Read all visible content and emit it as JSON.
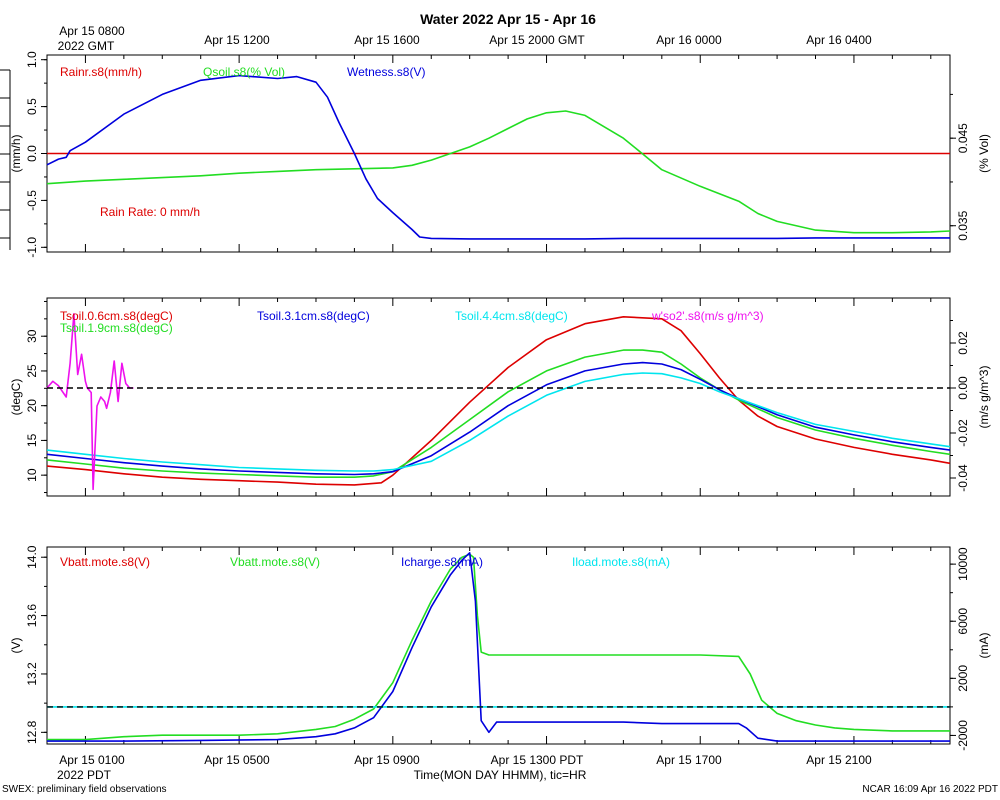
{
  "page": {
    "title": "Water 2022 Apr 15 - Apr 16",
    "top_time_labels": [
      "Apr 15 0800",
      "Apr 15 1200",
      "Apr 15 1600",
      "Apr 15 2000 GMT",
      "Apr 16 0000",
      "Apr 16 0400"
    ],
    "top_time_sub": "2022 GMT",
    "bottom_time_labels": [
      "Apr 15 0100",
      "Apr 15 0500",
      "Apr 15 0900",
      "Apr 15 1300 PDT",
      "Apr 15 1700",
      "Apr 15 2100"
    ],
    "bottom_time_sub": "2022 PDT",
    "xlabel": "Time(MON DAY HHMM), tic=HR",
    "footer_left": "SWEX: preliminary field observations",
    "footer_right": "NCAR 16:09 Apr 16 2022 PDT"
  },
  "chart_data": [
    {
      "type": "line",
      "x_unit": "hours since Apr 15 0000 PDT",
      "x_range": [
        0.0,
        23.5
      ],
      "left_axis": {
        "label": "(mm/h)",
        "range": [
          -1.05,
          1.05
        ],
        "ticks": [
          "-1.0",
          "-0.5",
          "0.0",
          "0.5",
          "1.0"
        ]
      },
      "right_axis": {
        "label": "(% Vol)",
        "range": [
          0.032,
          0.0545
        ],
        "ticks": [
          "0.035",
          "0.045"
        ]
      },
      "annotation": {
        "text": "Rain Rate: 0 mm/h",
        "color": "#dd0000"
      },
      "series": [
        {
          "name": "Rainr.s8(mm/h)",
          "axis": "left",
          "color": "#dd0000",
          "x": [
            0.0,
            23.5
          ],
          "y": [
            0.0,
            0.0
          ]
        },
        {
          "name": "Qsoil.s8(% Vol)",
          "axis": "right",
          "color": "#22dd22",
          "x": [
            0.0,
            1,
            2,
            3,
            4,
            5,
            6,
            7,
            8,
            9.0,
            9.5,
            10.0,
            11,
            11.5,
            12,
            12.5,
            13,
            13.5,
            14,
            15,
            15.5,
            16,
            17,
            18,
            18.5,
            19,
            20,
            21,
            22,
            23,
            23.5
          ],
          "y": [
            0.0398,
            0.0401,
            0.0403,
            0.0405,
            0.0407,
            0.041,
            0.0412,
            0.0414,
            0.0415,
            0.0416,
            0.0419,
            0.0425,
            0.044,
            0.045,
            0.0461,
            0.0472,
            0.0479,
            0.0481,
            0.0476,
            0.045,
            0.0432,
            0.0414,
            0.0395,
            0.0378,
            0.0364,
            0.0355,
            0.0345,
            0.0342,
            0.0342,
            0.0343,
            0.0344
          ]
        },
        {
          "name": "Wetness.s8(V)",
          "axis": "left",
          "color": "#0000dd",
          "x": [
            0.0,
            0.3,
            0.5,
            0.6,
            1.0,
            2.0,
            3.0,
            4.0,
            5.0,
            6.0,
            6.5,
            7.0,
            7.3,
            7.6,
            8.0,
            8.3,
            8.6,
            9.0,
            9.5,
            9.7,
            10.0,
            11,
            12,
            13,
            14,
            15,
            16,
            17,
            18,
            19,
            20,
            21,
            22,
            23,
            23.5
          ],
          "y": [
            -0.12,
            -0.06,
            -0.04,
            0.03,
            0.12,
            0.42,
            0.63,
            0.78,
            0.83,
            0.8,
            0.82,
            0.76,
            0.6,
            0.33,
            0.0,
            -0.27,
            -0.48,
            -0.63,
            -0.81,
            -0.89,
            -0.905,
            -0.91,
            -0.91,
            -0.91,
            -0.91,
            -0.905,
            -0.905,
            -0.905,
            -0.905,
            -0.905,
            -0.9,
            -0.9,
            -0.9,
            -0.9,
            -0.9
          ]
        }
      ]
    },
    {
      "type": "line",
      "x_unit": "hours since Apr 15 0000 PDT",
      "x_range": [
        0.0,
        23.5
      ],
      "left_axis": {
        "label": "(degC)",
        "range": [
          7.0,
          35.5
        ],
        "ticks": [
          "10",
          "15",
          "20",
          "25",
          "30"
        ]
      },
      "right_axis": {
        "label": "(m/s g/m^3)",
        "range": [
          -0.048,
          0.04
        ],
        "ticks": [
          "-0.04",
          "-0.02",
          "0.00",
          "0.02"
        ]
      },
      "series": [
        {
          "name": "Tsoil.0.6cm.s8(degC)",
          "axis": "left",
          "color": "#dd0000",
          "x": [
            0,
            1,
            2,
            3,
            4,
            5,
            6,
            7,
            8,
            8.7,
            9,
            10,
            11,
            12,
            13,
            14,
            15,
            16,
            16.5,
            17,
            17.5,
            18,
            18.5,
            19,
            20,
            21,
            22,
            23,
            23.5
          ],
          "y": [
            11.3,
            10.8,
            10.2,
            9.7,
            9.4,
            9.2,
            9.0,
            8.7,
            8.6,
            8.9,
            10.0,
            15.0,
            20.5,
            25.5,
            29.5,
            31.8,
            32.8,
            32.5,
            30.8,
            27.5,
            24.0,
            20.8,
            18.5,
            17.0,
            15.2,
            14.0,
            13.0,
            12.2,
            11.7
          ]
        },
        {
          "name": "Tsoil.1.9cm.s8(degC)",
          "axis": "left",
          "color": "#22dd22",
          "x": [
            0,
            1,
            2,
            3,
            4,
            5,
            6,
            7,
            8,
            8.5,
            9,
            10,
            11,
            12,
            13,
            14,
            15,
            15.5,
            16,
            16.5,
            17,
            17.5,
            18,
            19,
            20,
            21,
            22,
            23,
            23.5
          ],
          "y": [
            12.2,
            11.6,
            11.0,
            10.6,
            10.3,
            10.1,
            9.9,
            9.7,
            9.7,
            9.9,
            10.5,
            14.0,
            18.0,
            22.0,
            25.0,
            27.0,
            28.0,
            28.0,
            27.7,
            26.0,
            24.0,
            22.3,
            20.8,
            18.3,
            16.5,
            15.3,
            14.3,
            13.4,
            13.0
          ]
        },
        {
          "name": "Tsoil.3.1cm.s8(degC)",
          "axis": "left",
          "color": "#0000dd",
          "x": [
            0,
            1,
            2,
            3,
            4,
            5,
            6,
            7,
            8,
            8.5,
            9,
            10,
            11,
            12,
            13,
            14,
            15,
            15.5,
            16,
            16.5,
            17,
            17.5,
            18,
            19,
            20,
            21,
            22,
            23,
            23.5
          ],
          "y": [
            13.0,
            12.4,
            11.8,
            11.3,
            10.9,
            10.6,
            10.4,
            10.2,
            10.1,
            10.2,
            10.5,
            12.8,
            16.2,
            20.0,
            23.0,
            25.0,
            26.0,
            26.2,
            26.0,
            25.2,
            23.8,
            22.3,
            21.0,
            18.7,
            16.9,
            15.8,
            14.8,
            14.0,
            13.6
          ]
        },
        {
          "name": "Tsoil.4.4cm.s8(degC)",
          "axis": "left",
          "color": "#00e5ee",
          "x": [
            0,
            1,
            2,
            3,
            4,
            5,
            6,
            7,
            8,
            8.5,
            9,
            10,
            11,
            12,
            13,
            14,
            15,
            15.5,
            16,
            16.5,
            17,
            17.5,
            18,
            19,
            20,
            21,
            22,
            23,
            23.5
          ],
          "y": [
            13.6,
            13.0,
            12.4,
            11.9,
            11.5,
            11.1,
            10.9,
            10.7,
            10.6,
            10.6,
            10.8,
            12.0,
            15.0,
            18.5,
            21.5,
            23.5,
            24.5,
            24.7,
            24.6,
            24.0,
            23.2,
            22.0,
            21.0,
            19.0,
            17.3,
            16.3,
            15.3,
            14.5,
            14.1
          ]
        },
        {
          "name": "w'so2'.s8(m/s g/m^3)",
          "axis": "right",
          "color": "#ee11ee",
          "x": [
            0.0,
            0.15,
            0.3,
            0.5,
            0.6,
            0.7,
            0.8,
            0.9,
            1.0,
            1.05,
            1.15,
            1.2,
            1.3,
            1.4,
            1.5,
            1.55,
            1.65,
            1.75,
            1.85,
            1.95,
            2.05,
            2.15,
            2.25
          ],
          "y": [
            0.0,
            0.003,
            0.001,
            -0.004,
            0.011,
            0.033,
            0.006,
            0.015,
            0.003,
            0.0,
            -0.002,
            -0.045,
            -0.008,
            -0.004,
            -0.006,
            -0.009,
            -0.002,
            0.012,
            -0.006,
            0.011,
            0.002,
            0.0,
            0.0
          ]
        },
        {
          "name": "",
          "axis": "right",
          "color": "#000000",
          "dashed": true,
          "x": [
            0.0,
            23.5
          ],
          "y": [
            0.0,
            0.0
          ]
        }
      ]
    },
    {
      "type": "line",
      "x_unit": "hours since Apr 15 0000 PDT",
      "x_range": [
        0.0,
        23.5
      ],
      "left_axis": {
        "label": "(V)",
        "range": [
          12.72,
          14.07
        ],
        "ticks": [
          "12.8",
          "13.2",
          "13.6",
          "14.0"
        ]
      },
      "right_axis": {
        "label": "(mA)",
        "range": [
          -2600,
          11200
        ],
        "ticks": [
          "-2000",
          "2000",
          "6000",
          "10000"
        ]
      },
      "series": [
        {
          "name": "Vbatt.mote.s8(V)",
          "axis": "left",
          "color": "#dd0000",
          "x": [],
          "y": []
        },
        {
          "name": "Vbatt.mote.s8(V)",
          "axis": "left",
          "color": "#22dd22",
          "x": [
            0,
            1,
            2,
            3,
            4,
            5,
            6,
            7,
            7.5,
            8,
            8.5,
            9.0,
            9.5,
            10.0,
            10.5,
            10.8,
            11.0,
            11.1,
            11.2,
            11.3,
            11.5,
            12,
            13,
            14,
            15,
            16,
            17,
            18.0,
            18.3,
            18.6,
            19,
            19.5,
            20,
            20.5,
            21,
            22,
            23,
            23.5
          ],
          "y": [
            12.75,
            12.75,
            12.77,
            12.78,
            12.78,
            12.78,
            12.79,
            12.82,
            12.84,
            12.89,
            12.96,
            13.14,
            13.43,
            13.7,
            13.92,
            14.0,
            14.02,
            14.0,
            13.6,
            13.35,
            13.33,
            13.33,
            13.33,
            13.33,
            13.33,
            13.33,
            13.33,
            13.32,
            13.2,
            13.02,
            12.93,
            12.88,
            12.85,
            12.83,
            12.82,
            12.81,
            12.81,
            12.81
          ]
        },
        {
          "name": "Icharge.s8(mA)",
          "axis": "left",
          "color": "#0000dd",
          "x": [
            0,
            2,
            4,
            6,
            7,
            7.5,
            8,
            8.5,
            9.0,
            9.5,
            10.0,
            10.5,
            10.8,
            11.0,
            11.15,
            11.3,
            11.5,
            11.7,
            12,
            13,
            14,
            15,
            16,
            17,
            18.0,
            18.2,
            18.5,
            19,
            20,
            21,
            22,
            23,
            23.5
          ],
          "y": [
            12.74,
            12.74,
            12.745,
            12.75,
            12.77,
            12.79,
            12.83,
            12.9,
            13.08,
            13.38,
            13.66,
            13.88,
            13.98,
            14.03,
            13.7,
            12.88,
            12.8,
            12.87,
            12.87,
            12.87,
            12.87,
            12.87,
            12.86,
            12.86,
            12.86,
            12.83,
            12.76,
            12.74,
            12.74,
            12.74,
            12.74,
            12.74,
            12.74
          ]
        },
        {
          "name": "Iload.mote.s8(mA)",
          "axis": "right",
          "color": "#00e5ee",
          "x": [
            0.0,
            23.5
          ],
          "y": [
            0,
            0
          ]
        },
        {
          "name": "",
          "axis": "right",
          "color": "#000000",
          "dashed": true,
          "x": [
            0.0,
            23.5
          ],
          "y": [
            0,
            0
          ]
        }
      ]
    }
  ]
}
